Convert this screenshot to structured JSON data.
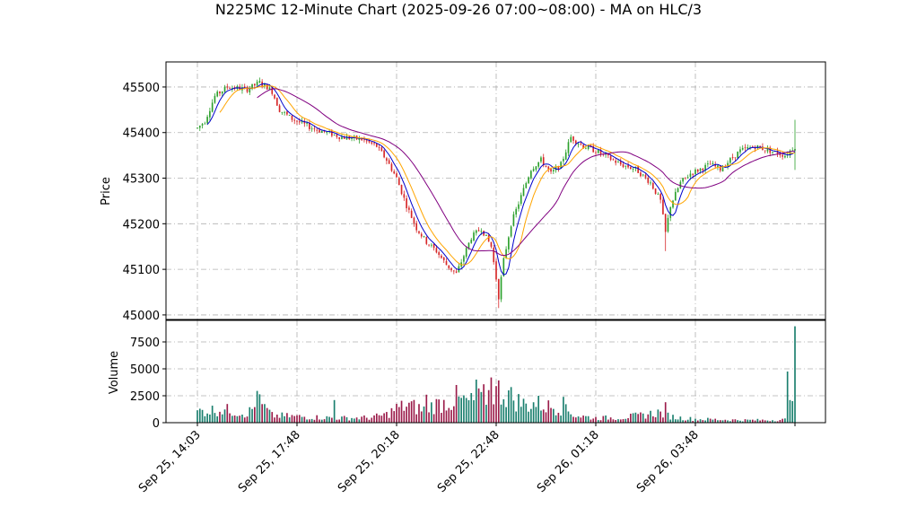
{
  "chart_data": {
    "type": "candlestick",
    "title": "N225MC 12-Minute Chart (2025-09-26 07:00~08:00) - MA on HLC/3",
    "price_panel": {
      "ylabel": "Price",
      "yticks": [
        45000,
        45100,
        45200,
        45300,
        45400,
        45500
      ],
      "ylim": [
        44990,
        45555
      ]
    },
    "volume_panel": {
      "ylabel": "Volume",
      "yticks": [
        0,
        2500,
        5000,
        7500
      ],
      "ytick_labels": [
        "0",
        "2500",
        "5000",
        "7500"
      ],
      "ylim": [
        0,
        9500
      ]
    },
    "xticks": [
      {
        "index": 0,
        "label": "Sep 25, 14:03"
      },
      {
        "index": 40,
        "label": "Sep 25, 17:48"
      },
      {
        "index": 80,
        "label": "Sep 25, 20:18"
      },
      {
        "index": 120,
        "label": "Sep 25, 22:48"
      },
      {
        "index": 160,
        "label": "Sep 26, 01:18"
      },
      {
        "index": 200,
        "label": "Sep 26, 03:48"
      }
    ],
    "bar_count": 241,
    "grid": true,
    "up_color": "#2ca02c",
    "down_color": "#d62728",
    "vol_up_color": "#1a7f6e",
    "vol_down_color": "#9b1c4a",
    "ma_series": [
      {
        "window": 5,
        "color": "#0000cc"
      },
      {
        "window": 10,
        "color": "#ffa500"
      },
      {
        "window": 25,
        "color": "#800080"
      }
    ],
    "price_path": [
      [
        0,
        45410
      ],
      [
        3,
        45425
      ],
      [
        7,
        45480
      ],
      [
        12,
        45500
      ],
      [
        20,
        45495
      ],
      [
        25,
        45510
      ],
      [
        28,
        45500
      ],
      [
        30,
        45490
      ],
      [
        33,
        45450
      ],
      [
        38,
        45430
      ],
      [
        42,
        45420
      ],
      [
        46,
        45410
      ],
      [
        52,
        45400
      ],
      [
        58,
        45390
      ],
      [
        66,
        45385
      ],
      [
        72,
        45370
      ],
      [
        76,
        45340
      ],
      [
        80,
        45300
      ],
      [
        84,
        45240
      ],
      [
        88,
        45190
      ],
      [
        92,
        45160
      ],
      [
        96,
        45140
      ],
      [
        100,
        45110
      ],
      [
        104,
        45090
      ],
      [
        107,
        45130
      ],
      [
        110,
        45170
      ],
      [
        114,
        45190
      ],
      [
        118,
        45150
      ],
      [
        120,
        45080
      ],
      [
        121,
        45040
      ],
      [
        123,
        45120
      ],
      [
        126,
        45200
      ],
      [
        130,
        45260
      ],
      [
        134,
        45320
      ],
      [
        138,
        45340
      ],
      [
        142,
        45310
      ],
      [
        146,
        45330
      ],
      [
        150,
        45390
      ],
      [
        155,
        45370
      ],
      [
        160,
        45360
      ],
      [
        165,
        45345
      ],
      [
        170,
        45330
      ],
      [
        176,
        45320
      ],
      [
        182,
        45290
      ],
      [
        186,
        45250
      ],
      [
        188,
        45180
      ],
      [
        190,
        45240
      ],
      [
        194,
        45290
      ],
      [
        198,
        45310
      ],
      [
        202,
        45320
      ],
      [
        206,
        45330
      ],
      [
        210,
        45320
      ],
      [
        214,
        45340
      ],
      [
        218,
        45360
      ],
      [
        224,
        45370
      ],
      [
        230,
        45360
      ],
      [
        236,
        45350
      ],
      [
        240,
        45370
      ]
    ],
    "volume_profile": [
      [
        0,
        1100
      ],
      [
        10,
        1300
      ],
      [
        20,
        900
      ],
      [
        25,
        1900
      ],
      [
        30,
        700
      ],
      [
        40,
        600
      ],
      [
        50,
        500
      ],
      [
        60,
        450
      ],
      [
        70,
        500
      ],
      [
        76,
        800
      ],
      [
        80,
        1400
      ],
      [
        85,
        1700
      ],
      [
        90,
        1300
      ],
      [
        95,
        1700
      ],
      [
        100,
        2000
      ],
      [
        105,
        2200
      ],
      [
        110,
        2000
      ],
      [
        116,
        2600
      ],
      [
        120,
        3200
      ],
      [
        124,
        2800
      ],
      [
        128,
        2200
      ],
      [
        132,
        1700
      ],
      [
        136,
        1900
      ],
      [
        140,
        1600
      ],
      [
        144,
        1500
      ],
      [
        148,
        1200
      ],
      [
        152,
        700
      ],
      [
        160,
        450
      ],
      [
        170,
        500
      ],
      [
        178,
        700
      ],
      [
        185,
        1000
      ],
      [
        192,
        500
      ],
      [
        200,
        350
      ],
      [
        210,
        300
      ],
      [
        220,
        250
      ],
      [
        230,
        250
      ],
      [
        236,
        300
      ],
      [
        238,
        800
      ],
      [
        240,
        1500
      ]
    ],
    "volume_spikes": [
      [
        24,
        2950
      ],
      [
        55,
        2100
      ],
      [
        92,
        2600
      ],
      [
        104,
        3500
      ],
      [
        112,
        4000
      ],
      [
        118,
        4200
      ],
      [
        120,
        3400
      ],
      [
        125,
        3000
      ],
      [
        137,
        2500
      ],
      [
        147,
        2400
      ],
      [
        188,
        1900
      ],
      [
        237,
        4750
      ],
      [
        238,
        2100
      ],
      [
        239,
        2000
      ],
      [
        240,
        8950
      ]
    ]
  }
}
